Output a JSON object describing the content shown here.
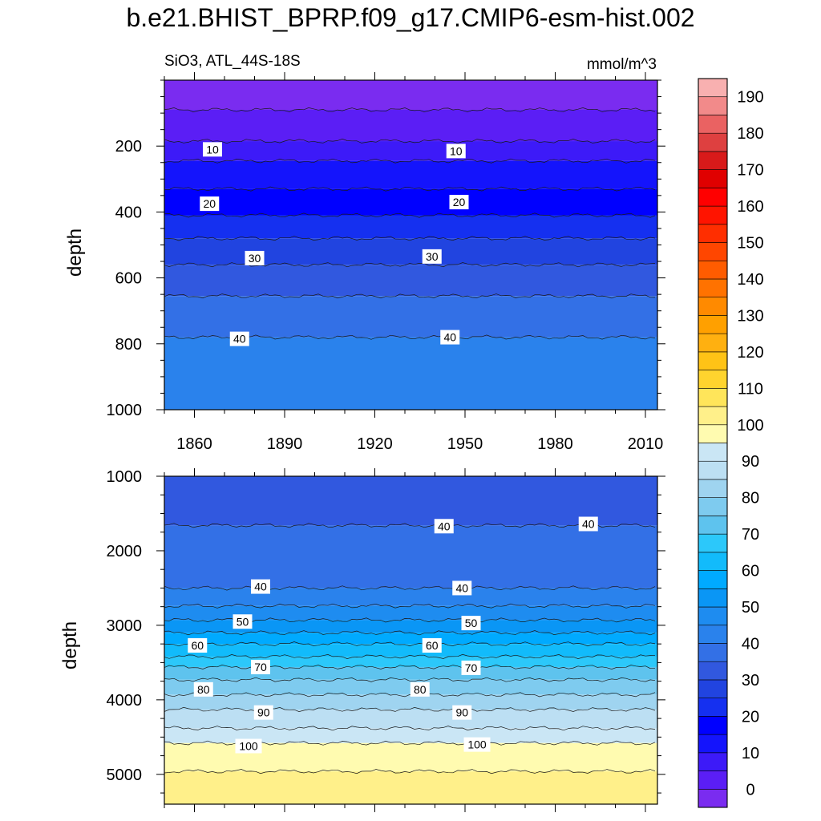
{
  "title": "b.e21.BHIST_BPRP.f09_g17.CMIP6-esm-hist.002",
  "subtitle_left": "SiO3, ATL_44S-18S",
  "subtitle_right": "mmol/m^3",
  "chart_data": [
    {
      "type": "heatmap",
      "panel": "upper",
      "ylabel": "depth",
      "x_range": [
        1850,
        2014
      ],
      "ylim": [
        0,
        1000
      ],
      "y_reversed": true,
      "x_ticks": [
        1860,
        1890,
        1920,
        1950,
        1980,
        2010
      ],
      "y_ticks": [
        200,
        400,
        600,
        800,
        1000
      ],
      "contour_interval": 5,
      "contour_levels": [
        {
          "value": 5,
          "depth": 90
        },
        {
          "value": 10,
          "depth": 185
        },
        {
          "value": 15,
          "depth": 245
        },
        {
          "value": 20,
          "depth": 330
        },
        {
          "value": 25,
          "depth": 410
        },
        {
          "value": 30,
          "depth": 480
        },
        {
          "value": 35,
          "depth": 560
        },
        {
          "value": 40,
          "depth": 655
        },
        {
          "value": 45,
          "depth": 780
        }
      ],
      "contour_labels": [
        {
          "text": "10",
          "x": 1866,
          "depth": 210
        },
        {
          "text": "10",
          "x": 1947,
          "depth": 215
        },
        {
          "text": "20",
          "x": 1865,
          "depth": 375
        },
        {
          "text": "20",
          "x": 1948,
          "depth": 370
        },
        {
          "text": "30",
          "x": 1880,
          "depth": 540
        },
        {
          "text": "30",
          "x": 1939,
          "depth": 535
        },
        {
          "text": "40",
          "x": 1875,
          "depth": 785
        },
        {
          "text": "40",
          "x": 1945,
          "depth": 780
        }
      ]
    },
    {
      "type": "heatmap",
      "panel": "lower",
      "ylabel": "depth",
      "x_range": [
        1850,
        2014
      ],
      "ylim": [
        1000,
        5400
      ],
      "y_reversed": true,
      "x_ticks": [
        1860,
        1890,
        1920,
        1950,
        1980,
        2010
      ],
      "y_ticks": [
        1000,
        2000,
        3000,
        4000,
        5000
      ],
      "contour_interval": 5,
      "contour_levels": [
        {
          "value": 40,
          "depth": 1660
        },
        {
          "value": 45,
          "depth": 2500
        },
        {
          "value": 50,
          "depth": 2740
        },
        {
          "value": 55,
          "depth": 2930
        },
        {
          "value": 60,
          "depth": 3100
        },
        {
          "value": 65,
          "depth": 3250
        },
        {
          "value": 70,
          "depth": 3420
        },
        {
          "value": 75,
          "depth": 3560
        },
        {
          "value": 80,
          "depth": 3730
        },
        {
          "value": 85,
          "depth": 3930
        },
        {
          "value": 90,
          "depth": 4130
        },
        {
          "value": 95,
          "depth": 4380
        },
        {
          "value": 100,
          "depth": 4580
        },
        {
          "value": 105,
          "depth": 4960
        }
      ],
      "contour_labels": [
        {
          "text": "40",
          "x": 1943,
          "depth": 1670
        },
        {
          "text": "40",
          "x": 1991,
          "depth": 1640
        },
        {
          "text": "40",
          "x": 1882,
          "depth": 2480
        },
        {
          "text": "40",
          "x": 1949,
          "depth": 2500
        },
        {
          "text": "50",
          "x": 1876,
          "depth": 2950
        },
        {
          "text": "50",
          "x": 1952,
          "depth": 2970
        },
        {
          "text": "60",
          "x": 1861,
          "depth": 3270
        },
        {
          "text": "60",
          "x": 1939,
          "depth": 3270
        },
        {
          "text": "70",
          "x": 1882,
          "depth": 3560
        },
        {
          "text": "70",
          "x": 1952,
          "depth": 3570
        },
        {
          "text": "80",
          "x": 1863,
          "depth": 3860
        },
        {
          "text": "80",
          "x": 1935,
          "depth": 3860
        },
        {
          "text": "90",
          "x": 1883,
          "depth": 4170
        },
        {
          "text": "90",
          "x": 1949,
          "depth": 4170
        },
        {
          "text": "100",
          "x": 1878,
          "depth": 4620
        },
        {
          "text": "100",
          "x": 1954,
          "depth": 4600
        }
      ]
    }
  ],
  "colorbar": {
    "levels": [
      0,
      5,
      10,
      15,
      20,
      25,
      30,
      35,
      40,
      45,
      50,
      55,
      60,
      65,
      70,
      75,
      80,
      85,
      90,
      95,
      100,
      105,
      110,
      115,
      120,
      125,
      130,
      135,
      140,
      145,
      150,
      155,
      160,
      165,
      170,
      175,
      180,
      185,
      190,
      195
    ],
    "labels": [
      "0",
      "10",
      "20",
      "30",
      "40",
      "50",
      "60",
      "70",
      "80",
      "90",
      "100",
      "110",
      "120",
      "130",
      "140",
      "150",
      "160",
      "170",
      "180",
      "190"
    ],
    "colors": [
      "#7a2cf0",
      "#5b1ef5",
      "#3d1af8",
      "#1414fc",
      "#0000ff",
      "#1530f0",
      "#2144e0",
      "#3158df",
      "#3370e6",
      "#2a82ec",
      "#1e8cf0",
      "#0a96f5",
      "#00aaff",
      "#12bbfb",
      "#2cc8fa",
      "#5ec3ee",
      "#7ecbef",
      "#9fd4f0",
      "#bcdff3",
      "#cae6f5",
      "#fffbb0",
      "#fff08a",
      "#ffe55a",
      "#ffd42e",
      "#ffc316",
      "#ffb010",
      "#ffa000",
      "#ff8a00",
      "#ff7200",
      "#ff5c00",
      "#ff4600",
      "#ff2e00",
      "#ff1400",
      "#ff0000",
      "#e00000",
      "#d81a1a",
      "#de4040",
      "#ea6262",
      "#f28a8a",
      "#f8b0b0"
    ]
  }
}
